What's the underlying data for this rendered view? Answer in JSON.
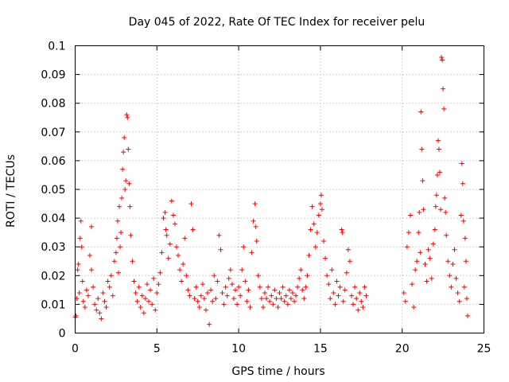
{
  "chart_data": {
    "type": "scatter",
    "title": "Day 045 of 2022, Rate Of TEC Index for receiver pelu",
    "xlabel": "GPS time / hours",
    "ylabel": "ROTI / TECUs",
    "xlim": [
      0,
      25
    ],
    "ylim": [
      0,
      0.1
    ],
    "x_ticks": [
      "0",
      "5",
      "10",
      "15",
      "20",
      "25"
    ],
    "y_ticks": [
      "0",
      "0.01",
      "0.02",
      "0.03",
      "0.04",
      "0.05",
      "0.06",
      "0.07",
      "0.08",
      "0.09",
      "0.1"
    ],
    "grid": true,
    "marker": "+",
    "color": "#ff0000",
    "series": [
      {
        "name": "ROTI",
        "points": [
          [
            0.0,
            0.0055
          ],
          [
            0.05,
            0.006
          ],
          [
            0.1,
            0.012
          ],
          [
            0.15,
            0.022
          ],
          [
            0.2,
            0.024
          ],
          [
            0.25,
            0.014
          ],
          [
            0.3,
            0.033
          ],
          [
            0.35,
            0.039
          ],
          [
            0.4,
            0.03
          ],
          [
            0.45,
            0.018
          ],
          [
            0.5,
            0.011
          ],
          [
            0.6,
            0.009
          ],
          [
            0.7,
            0.015
          ],
          [
            0.8,
            0.013
          ],
          [
            0.9,
            0.027
          ],
          [
            1.0,
            0.037
          ],
          [
            1.0,
            0.022
          ],
          [
            1.1,
            0.016
          ],
          [
            1.2,
            0.01
          ],
          [
            1.3,
            0.008
          ],
          [
            1.4,
            0.012
          ],
          [
            1.5,
            0.007
          ],
          [
            1.6,
            0.005
          ],
          [
            1.7,
            0.014
          ],
          [
            1.8,
            0.011
          ],
          [
            1.9,
            0.009
          ],
          [
            2.0,
            0.018
          ],
          [
            2.1,
            0.016
          ],
          [
            2.2,
            0.02
          ],
          [
            2.3,
            0.013
          ],
          [
            2.4,
            0.025
          ],
          [
            2.5,
            0.028
          ],
          [
            2.55,
            0.033
          ],
          [
            2.6,
            0.039
          ],
          [
            2.65,
            0.021
          ],
          [
            2.7,
            0.044
          ],
          [
            2.75,
            0.03
          ],
          [
            2.8,
            0.035
          ],
          [
            2.85,
            0.047
          ],
          [
            2.9,
            0.057
          ],
          [
            2.95,
            0.063
          ],
          [
            3.0,
            0.068
          ],
          [
            3.05,
            0.05
          ],
          [
            3.1,
            0.053
          ],
          [
            3.15,
            0.076
          ],
          [
            3.2,
            0.075
          ],
          [
            3.25,
            0.064
          ],
          [
            3.3,
            0.052
          ],
          [
            3.35,
            0.044
          ],
          [
            3.4,
            0.034
          ],
          [
            3.5,
            0.025
          ],
          [
            3.6,
            0.018
          ],
          [
            3.7,
            0.014
          ],
          [
            3.8,
            0.011
          ],
          [
            3.9,
            0.016
          ],
          [
            4.0,
            0.009
          ],
          [
            4.1,
            0.013
          ],
          [
            4.2,
            0.007
          ],
          [
            4.3,
            0.012
          ],
          [
            4.4,
            0.017
          ],
          [
            4.5,
            0.011
          ],
          [
            4.6,
            0.015
          ],
          [
            4.7,
            0.01
          ],
          [
            4.8,
            0.019
          ],
          [
            4.9,
            0.008
          ],
          [
            5.0,
            0.014
          ],
          [
            5.1,
            0.017
          ],
          [
            5.2,
            0.021
          ],
          [
            5.3,
            0.028
          ],
          [
            5.4,
            0.04
          ],
          [
            5.5,
            0.042
          ],
          [
            5.55,
            0.036
          ],
          [
            5.6,
            0.034
          ],
          [
            5.7,
            0.026
          ],
          [
            5.8,
            0.031
          ],
          [
            5.9,
            0.046
          ],
          [
            6.0,
            0.041
          ],
          [
            6.1,
            0.038
          ],
          [
            6.2,
            0.03
          ],
          [
            6.3,
            0.027
          ],
          [
            6.4,
            0.022
          ],
          [
            6.5,
            0.018
          ],
          [
            6.6,
            0.024
          ],
          [
            6.7,
            0.033
          ],
          [
            6.8,
            0.02
          ],
          [
            6.9,
            0.015
          ],
          [
            7.0,
            0.013
          ],
          [
            7.1,
            0.045
          ],
          [
            7.2,
            0.036
          ],
          [
            7.3,
            0.012
          ],
          [
            7.4,
            0.016
          ],
          [
            7.5,
            0.011
          ],
          [
            7.6,
            0.009
          ],
          [
            7.7,
            0.013
          ],
          [
            7.8,
            0.017
          ],
          [
            7.9,
            0.012
          ],
          [
            8.0,
            0.008
          ],
          [
            8.1,
            0.014
          ],
          [
            8.2,
            0.003
          ],
          [
            8.3,
            0.015
          ],
          [
            8.4,
            0.011
          ],
          [
            8.5,
            0.02
          ],
          [
            8.6,
            0.012
          ],
          [
            8.7,
            0.018
          ],
          [
            8.8,
            0.034
          ],
          [
            8.9,
            0.029
          ],
          [
            9.0,
            0.014
          ],
          [
            9.1,
            0.01
          ],
          [
            9.2,
            0.016
          ],
          [
            9.3,
            0.013
          ],
          [
            9.4,
            0.019
          ],
          [
            9.5,
            0.022
          ],
          [
            9.6,
            0.017
          ],
          [
            9.7,
            0.012
          ],
          [
            9.8,
            0.015
          ],
          [
            9.9,
            0.01
          ],
          [
            10.0,
            0.016
          ],
          [
            10.1,
            0.013
          ],
          [
            10.2,
            0.022
          ],
          [
            10.3,
            0.03
          ],
          [
            10.4,
            0.018
          ],
          [
            10.5,
            0.011
          ],
          [
            10.6,
            0.015
          ],
          [
            10.7,
            0.009
          ],
          [
            10.8,
            0.028
          ],
          [
            10.9,
            0.039
          ],
          [
            11.0,
            0.045
          ],
          [
            11.05,
            0.037
          ],
          [
            11.1,
            0.032
          ],
          [
            11.2,
            0.02
          ],
          [
            11.3,
            0.016
          ],
          [
            11.4,
            0.012
          ],
          [
            11.5,
            0.009
          ],
          [
            11.6,
            0.014
          ],
          [
            11.7,
            0.012
          ],
          [
            11.8,
            0.016
          ],
          [
            11.9,
            0.011
          ],
          [
            12.0,
            0.013
          ],
          [
            12.1,
            0.01
          ],
          [
            12.2,
            0.015
          ],
          [
            12.3,
            0.012
          ],
          [
            12.4,
            0.009
          ],
          [
            12.5,
            0.014
          ],
          [
            12.6,
            0.012
          ],
          [
            12.7,
            0.016
          ],
          [
            12.8,
            0.011
          ],
          [
            12.9,
            0.013
          ],
          [
            13.0,
            0.01
          ],
          [
            13.1,
            0.015
          ],
          [
            13.2,
            0.012
          ],
          [
            13.3,
            0.014
          ],
          [
            13.4,
            0.011
          ],
          [
            13.5,
            0.013
          ],
          [
            13.6,
            0.016
          ],
          [
            13.7,
            0.019
          ],
          [
            13.8,
            0.022
          ],
          [
            13.9,
            0.015
          ],
          [
            14.0,
            0.012
          ],
          [
            14.1,
            0.016
          ],
          [
            14.2,
            0.02
          ],
          [
            14.3,
            0.027
          ],
          [
            14.4,
            0.036
          ],
          [
            14.5,
            0.044
          ],
          [
            14.6,
            0.038
          ],
          [
            14.7,
            0.03
          ],
          [
            14.8,
            0.035
          ],
          [
            14.9,
            0.041
          ],
          [
            15.0,
            0.045
          ],
          [
            15.05,
            0.048
          ],
          [
            15.1,
            0.043
          ],
          [
            15.2,
            0.032
          ],
          [
            15.3,
            0.026
          ],
          [
            15.4,
            0.02
          ],
          [
            15.5,
            0.017
          ],
          [
            15.6,
            0.012
          ],
          [
            15.7,
            0.022
          ],
          [
            15.8,
            0.014
          ],
          [
            15.9,
            0.01
          ],
          [
            16.0,
            0.018
          ],
          [
            16.1,
            0.013
          ],
          [
            16.2,
            0.016
          ],
          [
            16.3,
            0.036
          ],
          [
            16.35,
            0.035
          ],
          [
            16.4,
            0.011
          ],
          [
            16.5,
            0.015
          ],
          [
            16.6,
            0.021
          ],
          [
            16.7,
            0.029
          ],
          [
            16.8,
            0.025
          ],
          [
            16.9,
            0.013
          ],
          [
            17.0,
            0.01
          ],
          [
            17.1,
            0.016
          ],
          [
            17.2,
            0.012
          ],
          [
            17.3,
            0.008
          ],
          [
            17.4,
            0.014
          ],
          [
            17.5,
            0.011
          ],
          [
            17.6,
            0.009
          ],
          [
            17.7,
            0.016
          ],
          [
            17.8,
            0.013
          ],
          [
            20.1,
            0.014
          ],
          [
            20.2,
            0.011
          ],
          [
            20.3,
            0.03
          ],
          [
            20.4,
            0.035
          ],
          [
            20.5,
            0.041
          ],
          [
            20.6,
            0.017
          ],
          [
            20.7,
            0.009
          ],
          [
            20.8,
            0.022
          ],
          [
            20.9,
            0.025
          ],
          [
            21.0,
            0.035
          ],
          [
            21.05,
            0.042
          ],
          [
            21.1,
            0.028
          ],
          [
            21.15,
            0.077
          ],
          [
            21.2,
            0.064
          ],
          [
            21.25,
            0.053
          ],
          [
            21.3,
            0.043
          ],
          [
            21.4,
            0.024
          ],
          [
            21.5,
            0.018
          ],
          [
            21.6,
            0.029
          ],
          [
            21.7,
            0.026
          ],
          [
            21.8,
            0.019
          ],
          [
            21.9,
            0.031
          ],
          [
            22.0,
            0.036
          ],
          [
            22.05,
            0.044
          ],
          [
            22.1,
            0.048
          ],
          [
            22.15,
            0.055
          ],
          [
            22.2,
            0.067
          ],
          [
            22.25,
            0.064
          ],
          [
            22.3,
            0.056
          ],
          [
            22.35,
            0.043
          ],
          [
            22.4,
            0.096
          ],
          [
            22.45,
            0.095
          ],
          [
            22.5,
            0.085
          ],
          [
            22.55,
            0.078
          ],
          [
            22.6,
            0.047
          ],
          [
            22.65,
            0.042
          ],
          [
            22.7,
            0.034
          ],
          [
            22.8,
            0.025
          ],
          [
            22.9,
            0.02
          ],
          [
            23.0,
            0.016
          ],
          [
            23.1,
            0.024
          ],
          [
            23.2,
            0.029
          ],
          [
            23.3,
            0.019
          ],
          [
            23.4,
            0.014
          ],
          [
            23.5,
            0.011
          ],
          [
            23.6,
            0.041
          ],
          [
            23.65,
            0.059
          ],
          [
            23.7,
            0.052
          ],
          [
            23.75,
            0.039
          ],
          [
            23.8,
            0.016
          ],
          [
            23.85,
            0.033
          ],
          [
            23.9,
            0.025
          ],
          [
            23.95,
            0.012
          ],
          [
            24.0,
            0.006
          ]
        ]
      }
    ]
  }
}
